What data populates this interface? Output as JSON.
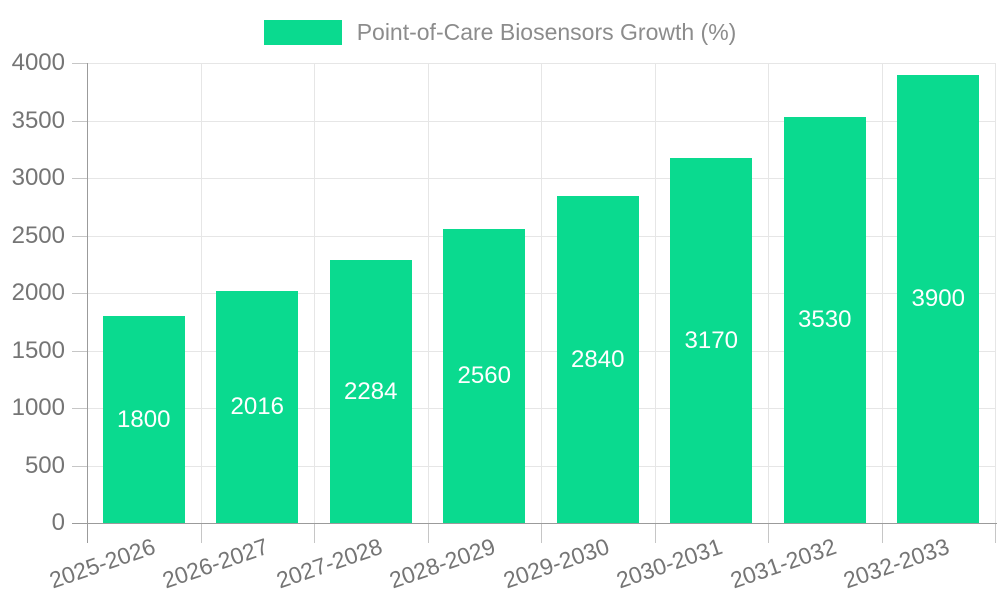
{
  "chart_data": {
    "type": "bar",
    "legend": "Point-of-Care Biosensors Growth (%)",
    "legend_position": "top-center",
    "categories": [
      "2025-2026",
      "2026-2027",
      "2027-2028",
      "2028-2029",
      "2029-2030",
      "2030-2031",
      "2031-2032",
      "2032-2033"
    ],
    "values": [
      1800,
      2016,
      2284,
      2560,
      2840,
      3170,
      3530,
      3900
    ],
    "ylim": [
      0,
      4000
    ],
    "yticks": [
      0,
      500,
      1000,
      1500,
      2000,
      2500,
      3000,
      3500,
      4000
    ],
    "grid": true,
    "value_labels": "inside-center",
    "xtick_rotation_deg": -19
  },
  "colors": {
    "bar": "#0ada8f",
    "bar_value_label": "#ffffff",
    "axis_line": "#9b9b9b",
    "grid_line": "#e6e6e6",
    "tick_line": "#c6c6c6",
    "axis_label": "#757575",
    "legend_text": "#8c8c8c",
    "background": "#ffffff"
  }
}
